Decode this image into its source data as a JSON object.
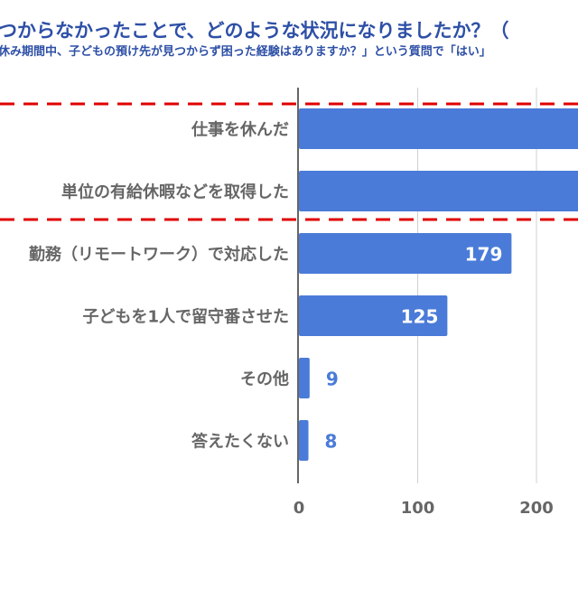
{
  "title": "つからなかったことで、どのような状況になりましたか？（",
  "subtitle": "休み期間中、子どもの預け先が見つからず困った経験はありますか？」という質問で「はい」",
  "colors": {
    "bar": "#4a7bd8",
    "title": "#2d4fa6",
    "highlight": "#e00000",
    "label": "#666666",
    "value_outside": "#4a7bd8"
  },
  "chart_data": {
    "type": "bar",
    "orientation": "horizontal",
    "categories": [
      "仕事を休んだ",
      "単位の有給休暇などを取得した",
      "勤務（リモートワーク）で対応した",
      "子どもを1人で留守番させた",
      "その他",
      "答えたくない"
    ],
    "values": [
      null,
      null,
      179,
      125,
      9,
      8
    ],
    "value_labels": [
      "",
      "",
      "179",
      "125",
      "9",
      "8"
    ],
    "clipped_note": "first two bars extend beyond visible area",
    "xticks": [
      "0",
      "100",
      "200"
    ],
    "xtick_values": [
      0,
      100,
      200
    ],
    "xlim": [
      0,
      234
    ],
    "grid": true,
    "highlighted_categories": [
      0,
      1
    ]
  }
}
